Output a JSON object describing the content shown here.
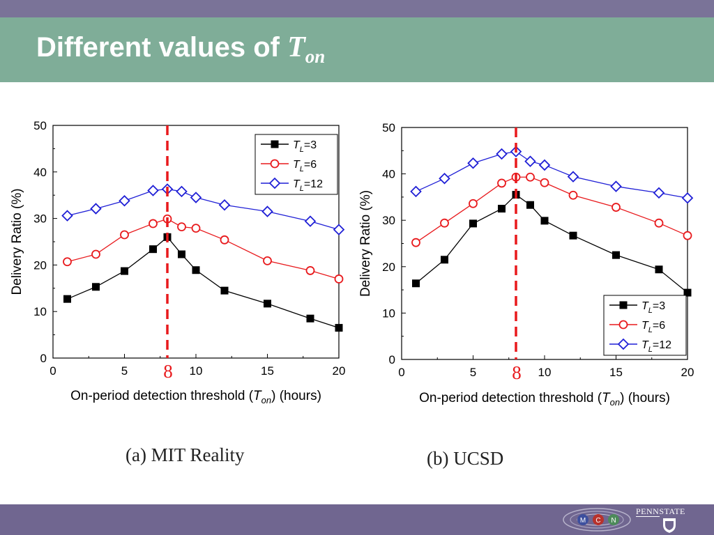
{
  "slide": {
    "title_text": "Different values of ",
    "title_symbol": "T",
    "title_subscript": "on"
  },
  "captions": [
    "(a)  MIT  Reality",
    "(b)  UCSD"
  ],
  "logos": {
    "university": "PENNSTATE",
    "lab_icon": "mcn-lab-logo-icon",
    "seal_icon": "university-shield-icon"
  },
  "colors": {
    "top_strip": "#7a7398",
    "title_bar": "#7fad98",
    "bottom_bar": "#706690",
    "series_TL3": "#000000",
    "series_TL6": "#e8191c",
    "series_TL12": "#1f1fd6",
    "marker_line": "#e8191c"
  },
  "chart_data": [
    {
      "type": "line",
      "xlabel": "On-period detection threshold (Ton) (hours)",
      "ylabel": "Delivery Ratio (%)",
      "xlim": [
        0,
        20
      ],
      "ylim": [
        0,
        50
      ],
      "xticks": [
        0,
        5,
        10,
        15,
        20
      ],
      "yticks": [
        0,
        10,
        20,
        30,
        40,
        50
      ],
      "grid": false,
      "legend_position": "top-right",
      "vline": {
        "x": 8,
        "label": "8"
      },
      "x": [
        1,
        3,
        5,
        7,
        8,
        9,
        10,
        12,
        15,
        18,
        20
      ],
      "series": [
        {
          "name": "TL=3",
          "name_main": "T",
          "name_sub": "L",
          "name_rest": "=3",
          "marker": "square",
          "values": [
            12.7,
            15.3,
            18.7,
            23.4,
            26.0,
            22.3,
            18.9,
            14.5,
            11.7,
            8.5,
            6.5
          ]
        },
        {
          "name": "TL=6",
          "name_main": "T",
          "name_sub": "L",
          "name_rest": "=6",
          "marker": "circle",
          "values": [
            20.7,
            22.3,
            26.5,
            28.9,
            29.9,
            28.2,
            27.9,
            25.4,
            20.9,
            18.8,
            17.0
          ]
        },
        {
          "name": "TL=12",
          "name_main": "T",
          "name_sub": "L",
          "name_rest": "=12",
          "marker": "diamond",
          "values": [
            30.6,
            32.1,
            33.8,
            36.0,
            36.3,
            35.8,
            34.5,
            32.9,
            31.5,
            29.4,
            27.6
          ]
        }
      ]
    },
    {
      "type": "line",
      "xlabel": "On-period detection threshold (Ton) (hours)",
      "ylabel": "Delivery Ratio (%)",
      "xlim": [
        0,
        20
      ],
      "ylim": [
        0,
        50
      ],
      "xticks": [
        0,
        5,
        10,
        15,
        20
      ],
      "yticks": [
        0,
        10,
        20,
        30,
        40,
        50
      ],
      "grid": false,
      "legend_position": "bottom-right",
      "vline": {
        "x": 8,
        "label": "8"
      },
      "x": [
        1,
        3,
        5,
        7,
        8,
        9,
        10,
        12,
        15,
        18,
        20
      ],
      "series": [
        {
          "name": "TL=3",
          "name_main": "T",
          "name_sub": "L",
          "name_rest": "=3",
          "marker": "square",
          "values": [
            16.4,
            21.5,
            29.3,
            32.5,
            35.5,
            33.3,
            29.9,
            26.7,
            22.5,
            19.4,
            14.4
          ]
        },
        {
          "name": "TL=6",
          "name_main": "T",
          "name_sub": "L",
          "name_rest": "=6",
          "marker": "circle",
          "values": [
            25.2,
            29.4,
            33.6,
            38.0,
            39.3,
            39.3,
            38.1,
            35.4,
            32.8,
            29.4,
            26.7
          ]
        },
        {
          "name": "TL=12",
          "name_main": "T",
          "name_sub": "L",
          "name_rest": "=12",
          "marker": "diamond",
          "values": [
            36.2,
            39.0,
            42.3,
            44.3,
            44.8,
            42.7,
            41.9,
            39.4,
            37.3,
            35.9,
            34.8
          ]
        }
      ]
    }
  ]
}
